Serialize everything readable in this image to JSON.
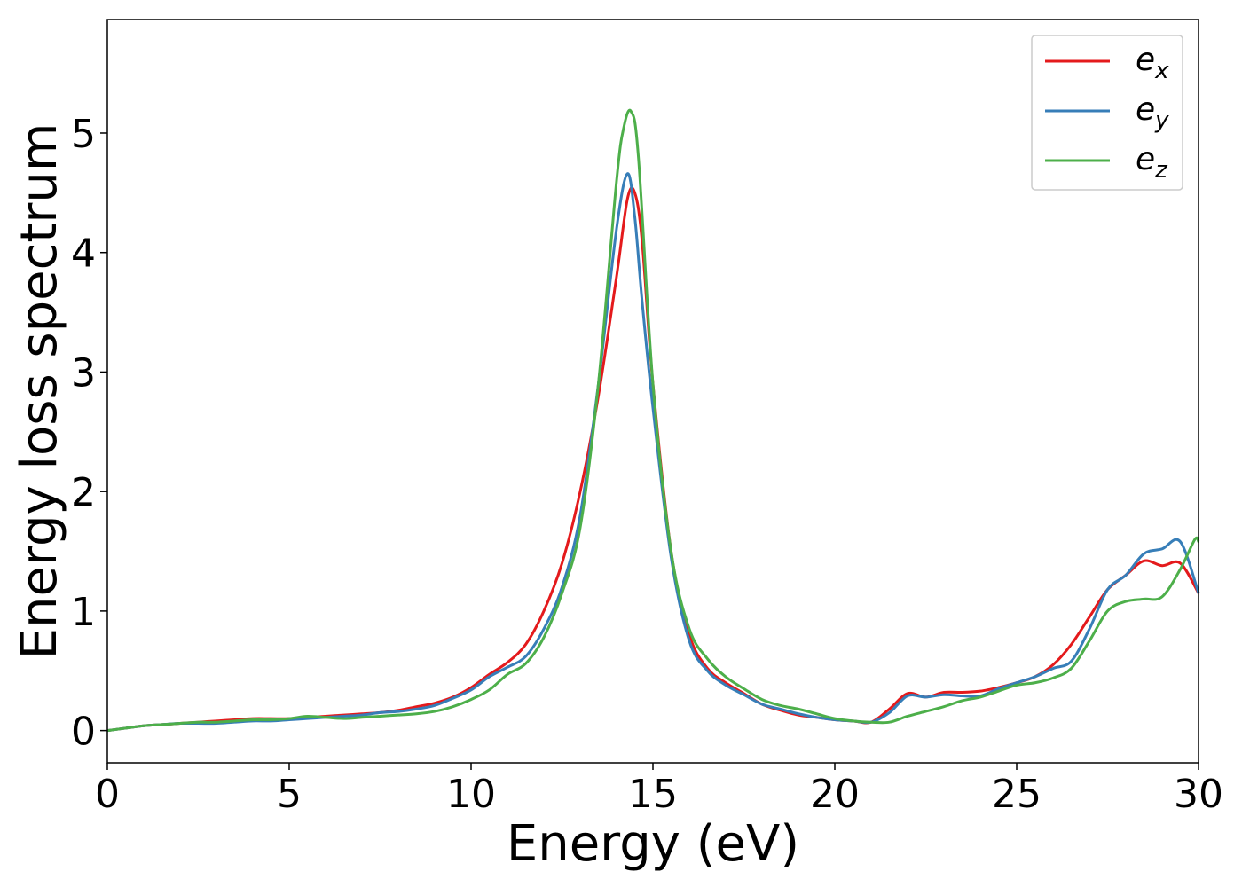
{
  "chart_data": {
    "type": "line",
    "title": "",
    "xlabel": "Energy (eV)",
    "ylabel": "Energy loss spectrum",
    "xlim": [
      0,
      30
    ],
    "ylim": [
      -0.27,
      5.95
    ],
    "xticks": [
      0,
      5,
      10,
      15,
      20,
      25,
      30
    ],
    "yticks": [
      0,
      1,
      2,
      3,
      4,
      5
    ],
    "grid": false,
    "legend_position": "top-right",
    "series": [
      {
        "name": "e_x",
        "label_base": "e",
        "label_sub": "x",
        "color": "#e41a1c",
        "x": [
          0,
          0.5,
          1,
          1.5,
          2,
          2.5,
          3,
          3.5,
          4,
          4.5,
          5,
          5.5,
          6,
          6.5,
          7,
          7.5,
          8,
          8.5,
          9,
          9.5,
          10,
          10.5,
          11,
          11.5,
          12,
          12.5,
          13,
          13.5,
          14,
          14.3,
          14.5,
          14.7,
          15,
          15.5,
          16,
          16.5,
          17,
          17.5,
          18,
          18.5,
          19,
          19.5,
          20,
          20.5,
          21,
          21.5,
          22,
          22.5,
          23,
          23.5,
          24,
          24.5,
          25,
          25.5,
          26,
          26.5,
          27,
          27.5,
          28,
          28.5,
          29,
          29.5,
          30
        ],
        "y": [
          0.0,
          0.02,
          0.04,
          0.05,
          0.06,
          0.07,
          0.08,
          0.09,
          0.1,
          0.1,
          0.1,
          0.11,
          0.12,
          0.13,
          0.14,
          0.15,
          0.17,
          0.2,
          0.23,
          0.28,
          0.36,
          0.47,
          0.57,
          0.72,
          1.0,
          1.4,
          2.0,
          2.8,
          3.8,
          4.45,
          4.5,
          4.1,
          2.9,
          1.5,
          0.8,
          0.52,
          0.4,
          0.31,
          0.22,
          0.17,
          0.13,
          0.11,
          0.09,
          0.08,
          0.07,
          0.18,
          0.31,
          0.28,
          0.32,
          0.32,
          0.33,
          0.36,
          0.4,
          0.45,
          0.55,
          0.72,
          0.95,
          1.18,
          1.3,
          1.42,
          1.38,
          1.4,
          1.15
        ]
      },
      {
        "name": "e_y",
        "label_base": "e",
        "label_sub": "y",
        "color": "#377eb8",
        "x": [
          0,
          0.5,
          1,
          1.5,
          2,
          2.5,
          3,
          3.5,
          4,
          4.5,
          5,
          5.5,
          6,
          6.5,
          7,
          7.5,
          8,
          8.5,
          9,
          9.5,
          10,
          10.5,
          11,
          11.5,
          12,
          12.5,
          13,
          13.5,
          14,
          14.3,
          14.5,
          14.7,
          15,
          15.5,
          16,
          16.5,
          17,
          17.5,
          18,
          18.5,
          19,
          19.5,
          20,
          20.5,
          21,
          21.5,
          22,
          22.5,
          23,
          23.5,
          24,
          24.5,
          25,
          25.5,
          26,
          26.5,
          27,
          27.5,
          28,
          28.5,
          29,
          29.5,
          30
        ],
        "y": [
          0.0,
          0.02,
          0.04,
          0.05,
          0.06,
          0.06,
          0.06,
          0.07,
          0.08,
          0.08,
          0.09,
          0.1,
          0.11,
          0.12,
          0.13,
          0.15,
          0.16,
          0.18,
          0.21,
          0.27,
          0.34,
          0.45,
          0.53,
          0.62,
          0.85,
          1.2,
          1.8,
          2.9,
          4.2,
          4.66,
          4.3,
          3.6,
          2.7,
          1.45,
          0.75,
          0.5,
          0.38,
          0.3,
          0.22,
          0.18,
          0.14,
          0.11,
          0.09,
          0.08,
          0.07,
          0.15,
          0.29,
          0.28,
          0.3,
          0.29,
          0.29,
          0.35,
          0.4,
          0.45,
          0.52,
          0.58,
          0.85,
          1.18,
          1.3,
          1.48,
          1.52,
          1.58,
          1.15
        ]
      },
      {
        "name": "e_z",
        "label_base": "e",
        "label_sub": "z",
        "color": "#4daf4a",
        "x": [
          0,
          0.5,
          1,
          1.5,
          2,
          2.5,
          3,
          3.5,
          4,
          4.5,
          5,
          5.5,
          6,
          6.5,
          7,
          7.5,
          8,
          8.5,
          9,
          9.5,
          10,
          10.5,
          11,
          11.5,
          12,
          12.5,
          13,
          13.5,
          14,
          14.2,
          14.4,
          14.6,
          15,
          15.5,
          16,
          16.5,
          17,
          17.5,
          18,
          18.5,
          19,
          19.5,
          20,
          20.5,
          21,
          21.5,
          22,
          22.5,
          23,
          23.5,
          24,
          24.5,
          25,
          25.5,
          26,
          26.5,
          27,
          27.5,
          28,
          28.5,
          29,
          29.5,
          29.9,
          30
        ],
        "y": [
          0.0,
          0.02,
          0.04,
          0.05,
          0.06,
          0.07,
          0.07,
          0.08,
          0.09,
          0.09,
          0.1,
          0.12,
          0.11,
          0.1,
          0.11,
          0.12,
          0.13,
          0.14,
          0.16,
          0.2,
          0.26,
          0.34,
          0.47,
          0.56,
          0.78,
          1.15,
          1.7,
          2.9,
          4.6,
          5.05,
          5.18,
          4.8,
          2.9,
          1.5,
          0.85,
          0.6,
          0.45,
          0.35,
          0.26,
          0.21,
          0.18,
          0.14,
          0.1,
          0.08,
          0.07,
          0.07,
          0.12,
          0.16,
          0.2,
          0.25,
          0.28,
          0.33,
          0.38,
          0.4,
          0.44,
          0.52,
          0.75,
          1.0,
          1.08,
          1.1,
          1.12,
          1.35,
          1.6,
          1.58
        ]
      }
    ]
  }
}
